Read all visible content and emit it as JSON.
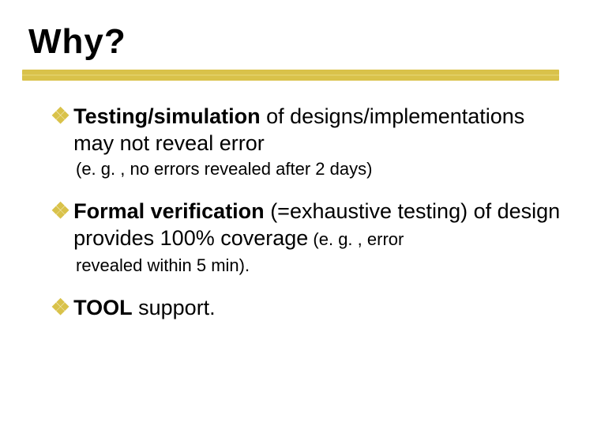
{
  "title": "Why?",
  "colors": {
    "bullet": "#d9c24a",
    "rule": "#d9c24a",
    "text": "#000000",
    "bg": "#ffffff"
  },
  "font": {
    "title_family": "Impact",
    "body_family": "Verdana",
    "title_size": 44,
    "body_size": 27,
    "sub_size": 22
  },
  "items": [
    {
      "bold": "Testing/simulation",
      "rest": " of designs/implementations may not reveal error",
      "sub": "(e. g. , no errors revealed after 2 days)"
    },
    {
      "bold": "Formal verification",
      "rest": " (=exhaustive testing) of design provides 100% coverage",
      "sub_inline": " (e. g. , error",
      "sub": "revealed within 5 min)."
    },
    {
      "bold": "TOOL",
      "rest": " support.",
      "sub": ""
    }
  ]
}
